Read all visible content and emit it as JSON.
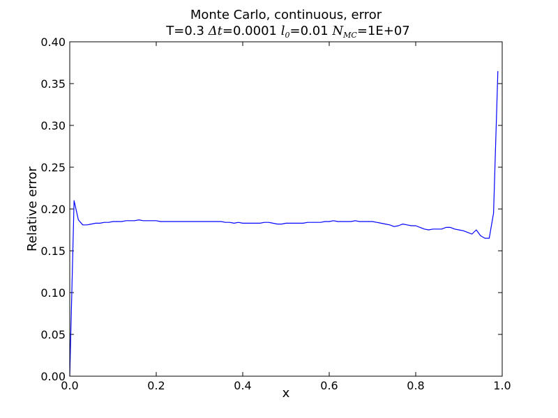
{
  "chart_data": {
    "type": "line",
    "title": "Monte Carlo, continuous, error",
    "subtitle": {
      "t_label": "T=0.3",
      "dt_symbol": "Δt",
      "dt_value": "=0.0001",
      "l_symbol": "l",
      "l_sub": "0",
      "l_value": "=0.01",
      "n_symbol": "N",
      "n_sub": "MC",
      "n_value": "=1E+07"
    },
    "xlabel": "x",
    "ylabel": "Relative error",
    "xlim": [
      0.0,
      1.0
    ],
    "ylim": [
      0.0,
      0.4
    ],
    "xticks": [
      "0.0",
      "0.2",
      "0.4",
      "0.6",
      "0.8",
      "1.0"
    ],
    "yticks": [
      "0.00",
      "0.05",
      "0.10",
      "0.15",
      "0.20",
      "0.25",
      "0.30",
      "0.35",
      "0.40"
    ],
    "grid": false,
    "series": [
      {
        "color": "#0000ff",
        "x": [
          0.0,
          0.01,
          0.02,
          0.03,
          0.04,
          0.05,
          0.06,
          0.07,
          0.08,
          0.09,
          0.1,
          0.11,
          0.12,
          0.13,
          0.14,
          0.15,
          0.16,
          0.17,
          0.18,
          0.19,
          0.2,
          0.21,
          0.22,
          0.23,
          0.24,
          0.25,
          0.26,
          0.27,
          0.28,
          0.29,
          0.3,
          0.31,
          0.32,
          0.33,
          0.34,
          0.35,
          0.36,
          0.37,
          0.38,
          0.39,
          0.4,
          0.41,
          0.42,
          0.43,
          0.44,
          0.45,
          0.46,
          0.47,
          0.48,
          0.49,
          0.5,
          0.51,
          0.52,
          0.53,
          0.54,
          0.55,
          0.56,
          0.57,
          0.58,
          0.59,
          0.6,
          0.61,
          0.62,
          0.63,
          0.64,
          0.65,
          0.66,
          0.67,
          0.68,
          0.69,
          0.7,
          0.71,
          0.72,
          0.73,
          0.74,
          0.75,
          0.76,
          0.77,
          0.78,
          0.79,
          0.8,
          0.81,
          0.82,
          0.83,
          0.84,
          0.85,
          0.86,
          0.87,
          0.88,
          0.89,
          0.9,
          0.91,
          0.92,
          0.93,
          0.94,
          0.95,
          0.96,
          0.97,
          0.98,
          0.99
        ],
        "y": [
          0.0,
          0.21,
          0.187,
          0.181,
          0.181,
          0.182,
          0.183,
          0.183,
          0.184,
          0.184,
          0.185,
          0.185,
          0.185,
          0.186,
          0.186,
          0.186,
          0.187,
          0.186,
          0.186,
          0.186,
          0.186,
          0.185,
          0.185,
          0.185,
          0.185,
          0.185,
          0.185,
          0.185,
          0.185,
          0.185,
          0.185,
          0.185,
          0.185,
          0.185,
          0.185,
          0.185,
          0.184,
          0.184,
          0.183,
          0.184,
          0.183,
          0.183,
          0.183,
          0.183,
          0.183,
          0.184,
          0.184,
          0.183,
          0.182,
          0.182,
          0.183,
          0.183,
          0.183,
          0.183,
          0.183,
          0.184,
          0.184,
          0.184,
          0.184,
          0.185,
          0.185,
          0.186,
          0.185,
          0.185,
          0.185,
          0.185,
          0.186,
          0.185,
          0.185,
          0.185,
          0.185,
          0.184,
          0.183,
          0.182,
          0.181,
          0.179,
          0.18,
          0.182,
          0.181,
          0.18,
          0.18,
          0.178,
          0.176,
          0.175,
          0.176,
          0.176,
          0.176,
          0.178,
          0.178,
          0.176,
          0.175,
          0.174,
          0.172,
          0.17,
          0.175,
          0.168,
          0.165,
          0.165,
          0.195,
          0.365
        ]
      }
    ]
  }
}
